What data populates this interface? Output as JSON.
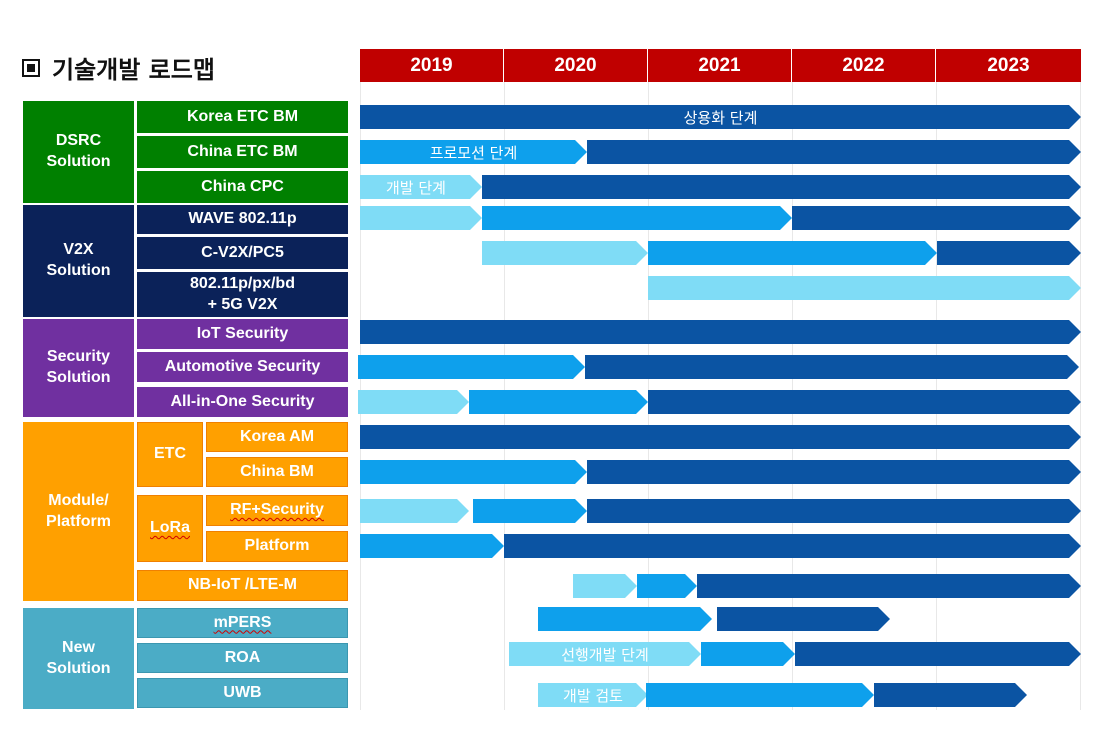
{
  "title": "기술개발 로드맵",
  "years": [
    "2019",
    "2020",
    "2021",
    "2022",
    "2023"
  ],
  "categories": {
    "dsrc": "DSRC\nSolution",
    "v2x": "V2X\nSolution",
    "security": "Security\nSolution",
    "module": "Module/\nPlatform",
    "new": "New\nSolution"
  },
  "subcategories": {
    "etc": "ETC",
    "lora": "LoRa"
  },
  "items": {
    "korea_etc_bm": "Korea ETC BM",
    "china_etc_bm": "China ETC BM",
    "china_cpc": "China CPC",
    "wave": "WAVE 802.11p",
    "cv2x": "C-V2X/PC5",
    "p80211": "802.11p/px/bd\n+ 5G V2X",
    "iot_security": "IoT Security",
    "automotive_security": "Automotive Security",
    "allinone_security": "All-in-One Security",
    "korea_am": "Korea AM",
    "china_bm": "China BM",
    "rf_security": "RF+Security",
    "platform": "Platform",
    "nbiot": "NB-IoT /LTE-M",
    "mpers": "mPERS",
    "roa": "ROA",
    "uwb": "UWB"
  },
  "phases": {
    "commercial": "상용화 단계",
    "promotion": "프로모션 단계",
    "development": "개발 단계",
    "advance_dev": "선행개발 단계",
    "dev_review": "개발 검토"
  },
  "colors": {
    "year_header": "#c00000",
    "dsrc": "#008000",
    "v2x": "#0b2259",
    "security": "#7030a0",
    "module": "#ffa000",
    "new_solution": "#4bacc6",
    "arrow_dark": "#0b54a3",
    "arrow_mid": "#0ea0ec",
    "arrow_light": "#7fdcf6"
  }
}
